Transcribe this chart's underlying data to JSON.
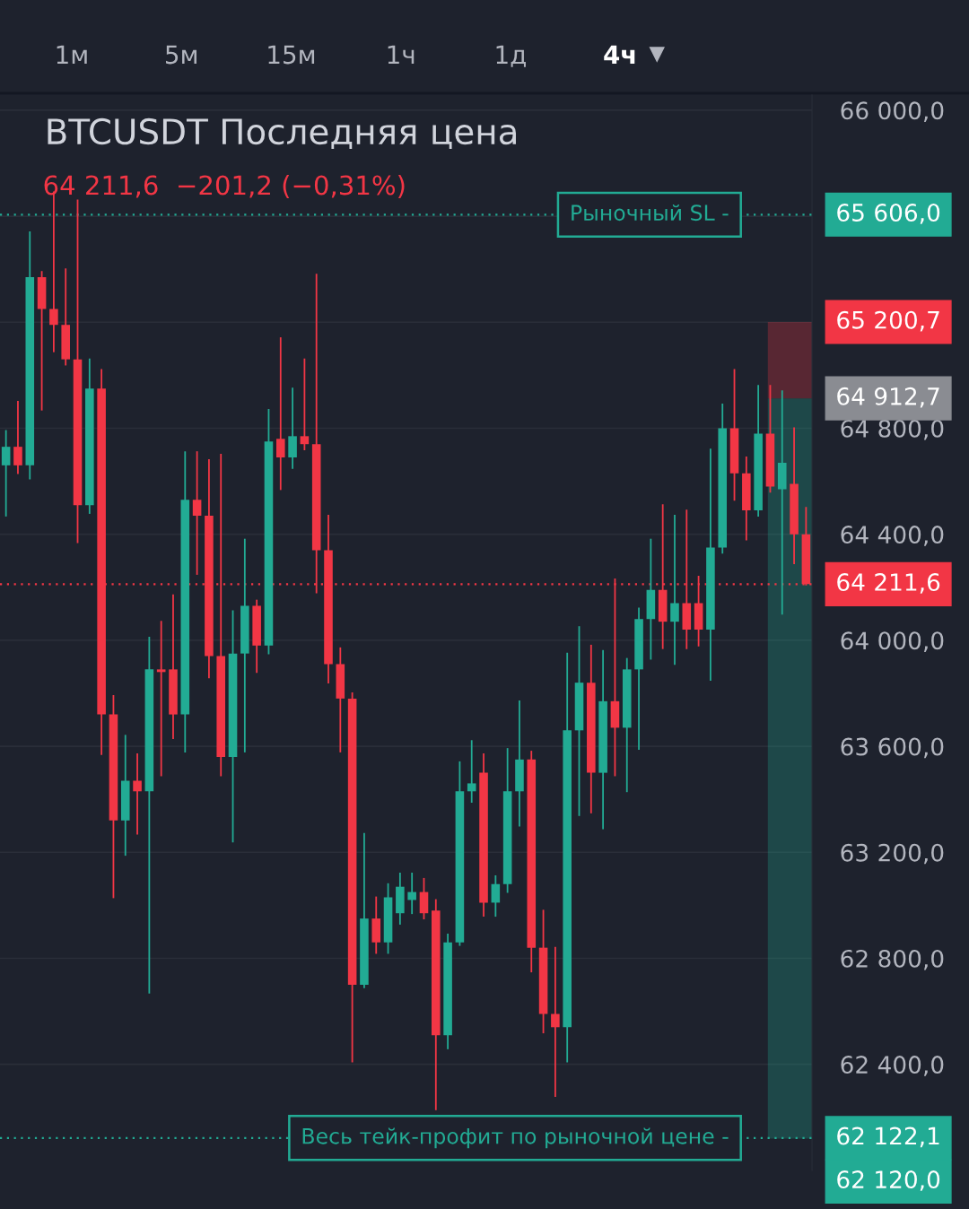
{
  "chart_data": {
    "type": "candlestick",
    "title": "BTCUSDT Последняя цена",
    "subtitle": "64 211,6  −201,2 (−0,31%)",
    "categories": [
      null,
      null,
      null,
      null,
      null,
      null,
      null,
      null,
      null,
      null,
      null,
      null,
      null,
      null,
      null,
      null,
      null,
      null,
      null,
      null,
      null,
      null,
      null,
      null,
      null,
      null,
      null,
      null,
      null,
      null,
      null,
      null,
      null,
      null,
      null,
      null,
      null,
      null,
      null,
      null,
      null,
      null,
      null,
      null,
      null,
      null,
      null,
      null,
      null,
      null,
      null,
      null,
      null,
      null,
      null,
      null,
      null,
      null,
      null,
      null,
      null,
      null,
      null,
      null,
      null,
      null,
      null,
      null
    ],
    "ohlc": [
      [
        64660,
        64790,
        64470,
        64730
      ],
      [
        64730,
        64900,
        64630,
        64660
      ],
      [
        64660,
        65540,
        64610,
        65370
      ],
      [
        65370,
        65390,
        64870,
        65250
      ],
      [
        65250,
        65690,
        65090,
        65190
      ],
      [
        65190,
        65400,
        65040,
        65060
      ],
      [
        65060,
        65660,
        64370,
        64510
      ],
      [
        64510,
        65060,
        64480,
        64950
      ],
      [
        64950,
        65020,
        63570,
        63720
      ],
      [
        63720,
        63790,
        63030,
        63320
      ],
      [
        63320,
        63640,
        63190,
        63470
      ],
      [
        63470,
        63570,
        63270,
        63430
      ],
      [
        63430,
        64010,
        62670,
        63890
      ],
      [
        63890,
        64070,
        63490,
        63880
      ],
      [
        63890,
        64170,
        63630,
        63720
      ],
      [
        63720,
        64710,
        63580,
        64530
      ],
      [
        64530,
        64710,
        64250,
        64470
      ],
      [
        64470,
        64680,
        63860,
        63940
      ],
      [
        63940,
        64700,
        63490,
        63560
      ],
      [
        63560,
        64110,
        63240,
        63950
      ],
      [
        63950,
        64380,
        63580,
        64130
      ],
      [
        64130,
        64150,
        63880,
        63980
      ],
      [
        63980,
        64870,
        63950,
        64750
      ],
      [
        64760,
        65140,
        64570,
        64690
      ],
      [
        64690,
        64950,
        64650,
        64770
      ],
      [
        64770,
        65060,
        64720,
        64740
      ],
      [
        64740,
        65380,
        64180,
        64340
      ],
      [
        64340,
        64470,
        63840,
        63910
      ],
      [
        63910,
        63970,
        63580,
        63780
      ],
      [
        63780,
        63800,
        62410,
        62700
      ],
      [
        62700,
        63270,
        62690,
        62950
      ],
      [
        62950,
        63030,
        62820,
        62860
      ],
      [
        62860,
        63080,
        62820,
        63030
      ],
      [
        62970,
        63120,
        62930,
        63070
      ],
      [
        63020,
        63120,
        62970,
        63050
      ],
      [
        63050,
        63100,
        62950,
        62970
      ],
      [
        62980,
        63020,
        62230,
        62510
      ],
      [
        62510,
        62890,
        62460,
        62860
      ],
      [
        62860,
        63540,
        62850,
        63430
      ],
      [
        63430,
        63620,
        63390,
        63460
      ],
      [
        63500,
        63570,
        62960,
        63010
      ],
      [
        63010,
        63110,
        62960,
        63080
      ],
      [
        63080,
        63590,
        63050,
        63430
      ],
      [
        63430,
        63770,
        63300,
        63550
      ],
      [
        63550,
        63580,
        62750,
        62840
      ],
      [
        62840,
        62980,
        62520,
        62590
      ],
      [
        62590,
        62840,
        62280,
        62540
      ],
      [
        62540,
        63950,
        62410,
        63660
      ],
      [
        63660,
        64050,
        63340,
        63840
      ],
      [
        63840,
        63980,
        63350,
        63500
      ],
      [
        63500,
        63960,
        63290,
        63770
      ],
      [
        63770,
        64230,
        63490,
        63670
      ],
      [
        63670,
        63930,
        63430,
        63890
      ],
      [
        63890,
        64120,
        63590,
        64080
      ],
      [
        64080,
        64380,
        63930,
        64190
      ],
      [
        64190,
        64510,
        63970,
        64070
      ],
      [
        64070,
        64470,
        63910,
        64140
      ],
      [
        64140,
        64490,
        63970,
        64040
      ],
      [
        64140,
        64240,
        63980,
        64040
      ],
      [
        64040,
        64720,
        63850,
        64350
      ],
      [
        64350,
        64890,
        64330,
        64800
      ],
      [
        64800,
        65020,
        64530,
        64630
      ],
      [
        64630,
        64690,
        64380,
        64490
      ],
      [
        64490,
        64960,
        64470,
        64780
      ],
      [
        64780,
        64960,
        64560,
        64580
      ],
      [
        64570,
        64940,
        64100,
        64670
      ],
      [
        64590,
        64800,
        64290,
        64400
      ],
      [
        64400,
        64500,
        64210,
        64211.6
      ]
    ],
    "colors": [
      "#22ab94",
      "#f23645",
      "#22ab94",
      "#f23645",
      "#f23645",
      "#f23645",
      "#f23645",
      "#22ab94",
      "#f23645",
      "#f23645",
      "#22ab94",
      "#f23645",
      "#22ab94",
      "#f23645",
      "#f23645",
      "#22ab94",
      "#f23645",
      "#f23645",
      "#f23645",
      "#22ab94",
      "#22ab94",
      "#f23645",
      "#22ab94",
      "#f23645",
      "#22ab94",
      "#f23645",
      "#f23645",
      "#f23645",
      "#f23645",
      "#f23645",
      "#22ab94",
      "#f23645",
      "#22ab94",
      "#22ab94",
      "#22ab94",
      "#f23645",
      "#f23645",
      "#22ab94",
      "#22ab94",
      "#22ab94",
      "#f23645",
      "#22ab94",
      "#22ab94",
      "#22ab94",
      "#f23645",
      "#f23645",
      "#f23645",
      "#22ab94",
      "#22ab94",
      "#f23645",
      "#22ab94",
      "#f23645",
      "#22ab94",
      "#22ab94",
      "#22ab94",
      "#f23645",
      "#22ab94",
      "#f23645",
      "#f23645",
      "#22ab94",
      "#22ab94",
      "#f23645",
      "#f23645",
      "#22ab94",
      "#f23645",
      "#22ab94",
      "#f23645",
      "#f23645"
    ],
    "ylim": [
      62000,
      66060
    ],
    "yticks": [
      {
        "value": 62400,
        "label": "62 400,0"
      },
      {
        "value": 62800,
        "label": "62 800,0"
      },
      {
        "value": 63200,
        "label": "63 200,0"
      },
      {
        "value": 63600,
        "label": "63 600,0"
      },
      {
        "value": 64000,
        "label": "64 000,0"
      },
      {
        "value": 64400,
        "label": "64 400,0"
      },
      {
        "value": 64800,
        "label": "64 800,0"
      },
      {
        "value": 65200,
        "label": null
      },
      {
        "value": 65600,
        "label": null
      },
      {
        "value": 66000,
        "label": "66 000,0"
      }
    ],
    "tick_labels": "y",
    "grid": true,
    "ref_lines": [
      {
        "axis": "y",
        "value": 65606.0,
        "label": "65 606,0",
        "color": "#22ab94",
        "line_style": "dotted"
      },
      {
        "axis": "y",
        "value": 64211.6,
        "label": "64 211,6",
        "color": "#f23645",
        "line_style": "dotted"
      },
      {
        "axis": "y",
        "value": 62122.1,
        "label": "62 122,1",
        "color": "#22ab94",
        "line_style": "dotted"
      }
    ],
    "bands": [
      {
        "axis": "y",
        "from": 64912.7,
        "to": 65200.7,
        "color": "#f23645",
        "label": "65 200,7"
      },
      {
        "axis": "y",
        "from": 62120.0,
        "to": 64912.7,
        "color": "#22ab94",
        "label": "62 120,0"
      }
    ],
    "annotations": [
      "1м",
      "5м",
      "15м",
      "1ч",
      "1д",
      "4ч",
      {
        "text": "Рыночный SL -",
        "y": 65606.0
      },
      {
        "text": "Весь тейк-профит по рыночной цене -",
        "y": 62122.1
      },
      "64 912,7"
    ]
  }
}
